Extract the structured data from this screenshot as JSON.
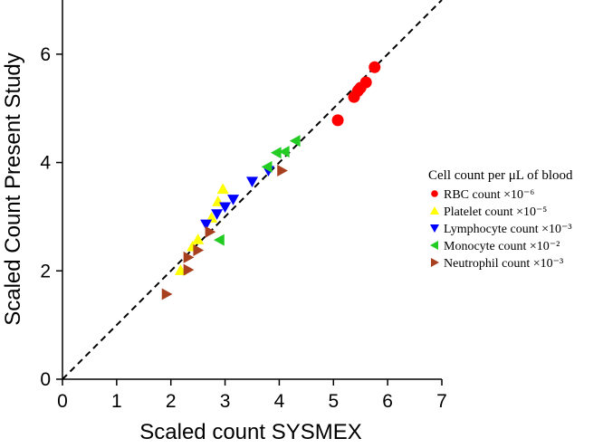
{
  "chart_data": {
    "type": "scatter",
    "title": "",
    "xlabel": "Scaled count SYSMEX",
    "ylabel": "Scaled Count Present Study",
    "xlim": [
      0,
      7
    ],
    "ylim": [
      0,
      7
    ],
    "x_ticks": [
      "0",
      "1",
      "2",
      "3",
      "4",
      "5",
      "6",
      "7"
    ],
    "y_ticks": [
      "0",
      "2",
      "4",
      "6"
    ],
    "reference_line": "y = x",
    "grid": false,
    "legend": {
      "title": "Cell count per μL of blood",
      "placement": "right"
    },
    "series": [
      {
        "name": "RBC count ×10⁻⁶",
        "marker": "circle",
        "color": "#ff0000",
        "points": [
          [
            5.08,
            4.78
          ],
          [
            5.38,
            5.21
          ],
          [
            5.45,
            5.32
          ],
          [
            5.5,
            5.38
          ],
          [
            5.6,
            5.48
          ],
          [
            5.76,
            5.76
          ]
        ]
      },
      {
        "name": "Platelet count ×10⁻⁵",
        "marker": "triangle-up",
        "color": "#ffff00",
        "points": [
          [
            2.18,
            2.01
          ],
          [
            2.4,
            2.45
          ],
          [
            2.5,
            2.58
          ],
          [
            2.75,
            2.98
          ],
          [
            2.87,
            3.28
          ],
          [
            2.96,
            3.51
          ]
        ]
      },
      {
        "name": "Lymphocyte count ×10⁻³",
        "marker": "triangle-down",
        "color": "#0000ff",
        "points": [
          [
            2.65,
            2.86
          ],
          [
            2.85,
            3.05
          ],
          [
            3.0,
            3.18
          ],
          [
            3.15,
            3.32
          ],
          [
            3.5,
            3.65
          ],
          [
            3.8,
            3.85
          ]
        ]
      },
      {
        "name": "Monocyte count ×10⁻²",
        "marker": "triangle-left",
        "color": "#22cc22",
        "points": [
          [
            2.9,
            2.57
          ],
          [
            3.78,
            3.92
          ],
          [
            3.95,
            4.18
          ],
          [
            4.1,
            4.2
          ],
          [
            4.3,
            4.4
          ]
        ]
      },
      {
        "name": "Neutrophil count ×10⁻³",
        "marker": "triangle-right",
        "color": "#a84020",
        "points": [
          [
            1.92,
            1.57
          ],
          [
            2.32,
            2.02
          ],
          [
            2.32,
            2.25
          ],
          [
            2.5,
            2.38
          ],
          [
            2.72,
            2.72
          ],
          [
            4.05,
            3.85
          ]
        ]
      }
    ]
  }
}
